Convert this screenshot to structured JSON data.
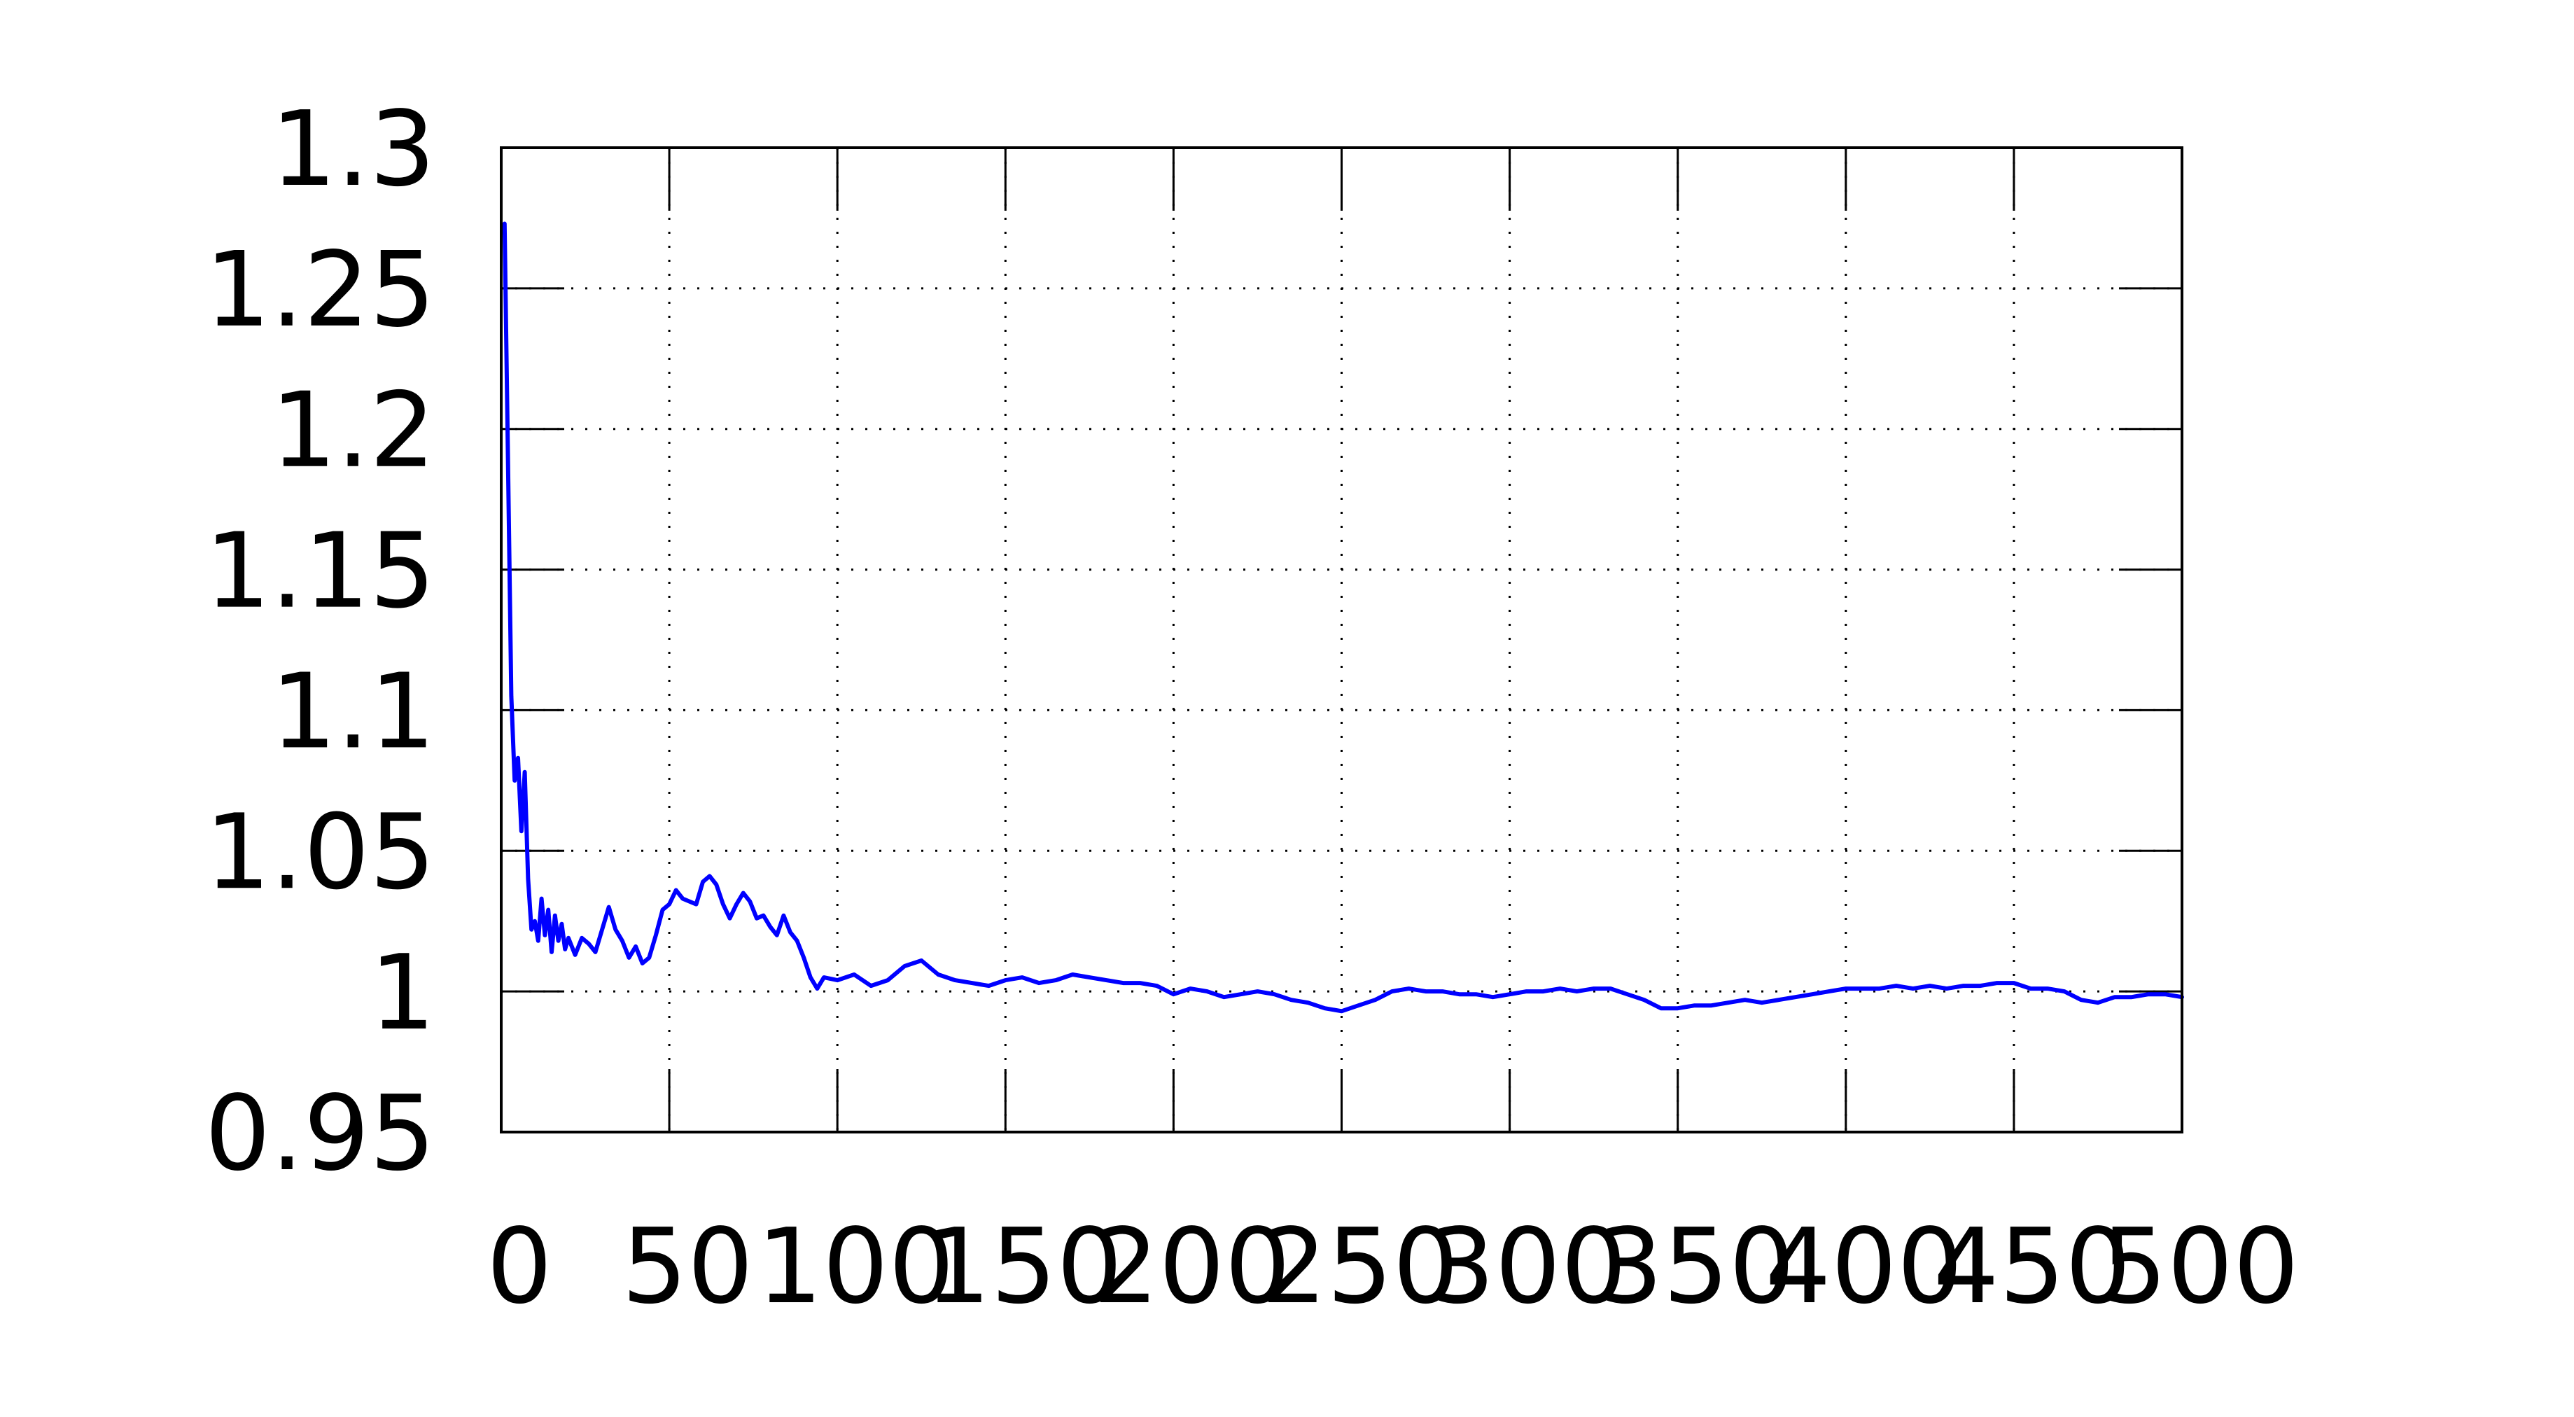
{
  "chart_data": {
    "type": "line",
    "title": "",
    "xlabel": "",
    "ylabel": "",
    "xlim": [
      0,
      500
    ],
    "ylim": [
      0.95,
      1.3
    ],
    "x_ticks": [
      0,
      50,
      100,
      150,
      200,
      250,
      300,
      350,
      400,
      450,
      500
    ],
    "x_tick_labels": [
      "0",
      "50",
      "100",
      "150",
      "200",
      "250",
      "300",
      "350",
      "400",
      "450",
      "500"
    ],
    "y_ticks": [
      0.95,
      1.0,
      1.05,
      1.1,
      1.15,
      1.2,
      1.25,
      1.3
    ],
    "y_tick_labels": [
      "0.95",
      "1",
      "1.05",
      "1.1",
      "1.15",
      "1.2",
      "1.25",
      "1.3"
    ],
    "grid": true,
    "legend": "none",
    "series": [
      {
        "color": "#0000ff",
        "x": [
          1,
          2,
          3,
          4,
          5,
          6,
          7,
          8,
          9,
          10,
          11,
          12,
          13,
          14,
          15,
          16,
          17,
          18,
          19,
          20,
          22,
          24,
          26,
          28,
          30,
          32,
          34,
          36,
          38,
          40,
          42,
          44,
          46,
          48,
          50,
          52,
          54,
          56,
          58,
          60,
          62,
          64,
          66,
          68,
          70,
          72,
          74,
          76,
          78,
          80,
          82,
          84,
          86,
          88,
          90,
          92,
          94,
          96,
          100,
          105,
          110,
          115,
          120,
          125,
          130,
          135,
          140,
          145,
          150,
          155,
          160,
          165,
          170,
          175,
          180,
          185,
          190,
          195,
          200,
          205,
          210,
          215,
          220,
          225,
          230,
          235,
          240,
          245,
          250,
          255,
          260,
          265,
          270,
          275,
          280,
          285,
          290,
          295,
          300,
          305,
          310,
          315,
          320,
          325,
          330,
          335,
          340,
          345,
          350,
          355,
          360,
          365,
          370,
          375,
          380,
          385,
          390,
          395,
          400,
          405,
          410,
          415,
          420,
          425,
          430,
          435,
          440,
          445,
          450,
          455,
          460,
          465,
          470,
          475,
          480,
          485,
          490,
          495,
          500
        ],
        "y": [
          1.273,
          1.19,
          1.105,
          1.075,
          1.083,
          1.057,
          1.078,
          1.04,
          1.022,
          1.025,
          1.018,
          1.033,
          1.02,
          1.029,
          1.014,
          1.027,
          1.018,
          1.024,
          1.015,
          1.019,
          1.013,
          1.019,
          1.017,
          1.014,
          1.022,
          1.03,
          1.022,
          1.018,
          1.012,
          1.016,
          1.01,
          1.012,
          1.02,
          1.029,
          1.031,
          1.036,
          1.033,
          1.032,
          1.031,
          1.039,
          1.041,
          1.038,
          1.031,
          1.026,
          1.031,
          1.035,
          1.032,
          1.026,
          1.027,
          1.023,
          1.02,
          1.027,
          1.021,
          1.018,
          1.012,
          1.005,
          1.001,
          1.005,
          1.004,
          1.006,
          1.002,
          1.004,
          1.009,
          1.011,
          1.006,
          1.004,
          1.003,
          1.002,
          1.004,
          1.005,
          1.003,
          1.004,
          1.006,
          1.005,
          1.004,
          1.003,
          1.003,
          1.002,
          0.999,
          1.001,
          1.0,
          0.998,
          0.999,
          1.0,
          0.999,
          0.997,
          0.996,
          0.994,
          0.993,
          0.995,
          0.997,
          1.0,
          1.001,
          1.0,
          1.0,
          0.999,
          0.999,
          0.998,
          0.999,
          1.0,
          1.0,
          1.001,
          1.0,
          1.001,
          1.001,
          0.999,
          0.997,
          0.994,
          0.994,
          0.995,
          0.995,
          0.996,
          0.997,
          0.996,
          0.997,
          0.998,
          0.999,
          1.0,
          1.001,
          1.001,
          1.001,
          1.002,
          1.001,
          1.002,
          1.001,
          1.002,
          1.002,
          1.003,
          1.003,
          1.001,
          1.001,
          1.0,
          0.997,
          0.996,
          0.998,
          0.998,
          0.999,
          0.999,
          0.998
        ]
      }
    ]
  }
}
